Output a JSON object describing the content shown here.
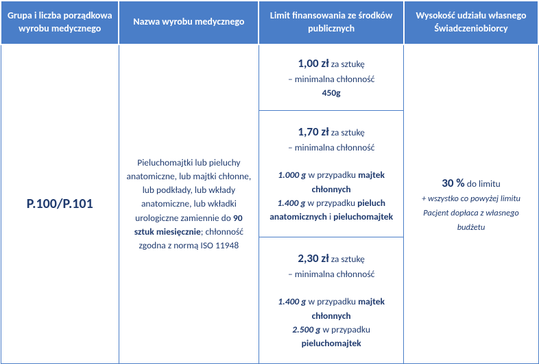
{
  "colors": {
    "header_bg": "#4a7ec8",
    "header_text": "#ffffff",
    "cell_text": "#1f3a6e",
    "border": "#4a7ec8",
    "page_bg": "#ffffff"
  },
  "typography": {
    "header_fontsize": 14,
    "body_fontsize": 13.5,
    "code_fontsize": 20,
    "price_fontsize": 17,
    "small_italic_fontsize": 12.5,
    "font_family": "Calibri, Arial, sans-serif"
  },
  "headers": {
    "col1": "Grupa i liczba porządkowa wyrobu medycznego",
    "col2": "Nazwa wyrobu medycznego",
    "col3": "Limit finansowania ze środków publicznych",
    "col4": "Wysokość udziału własnego Świadczeniobiorcy"
  },
  "code": "P.100/P.101",
  "product": {
    "line1": "Pieluchomajtki lub pieluchy anatomiczne, lub majtki chłonne, lub podkłady, lub wkłady anatomiczne, lub wkładki urologiczne zamiennie do ",
    "bold1": "90 sztuk miesięcznie",
    "line2": "; chłonność zgodna z normą ISO 11948"
  },
  "limits": [
    {
      "price": "1,00 zł",
      "per": " za sztukę",
      "sub": "– minimalna chłonność",
      "detail_lines": [
        {
          "bold": "450g"
        }
      ]
    },
    {
      "price": "1,70 zł",
      "per": " za sztukę",
      "sub": "– minimalna chłonność",
      "detail_lines": [
        {
          "bold_italic": "1.000 g",
          "rest": " w przypadku ",
          "bold2": "majtek chłonnych"
        },
        {
          "bold_italic": "1.400 g",
          "rest": " w przypadku ",
          "bold2": "pieluch anatomicznych",
          "rest2": " i ",
          "bold3": "pieluchomajtek"
        }
      ]
    },
    {
      "price": "2,30 zł",
      "per": " za sztukę",
      "sub": "– minimalna chłonność",
      "detail_lines": [
        {
          "bold_italic": "1.400 g",
          "rest": " w przypadku ",
          "bold2": "majtek chłonnych"
        },
        {
          "bold_italic": "2.500 g",
          "rest": " w przypadku ",
          "bold2": "pieluchomajtek"
        }
      ]
    }
  ],
  "share": {
    "pct": "30 %",
    "pct_after": " do limitu",
    "note": "+ wszystko co powyżej limitu Pacjent dopłaca z własnego budżetu"
  }
}
